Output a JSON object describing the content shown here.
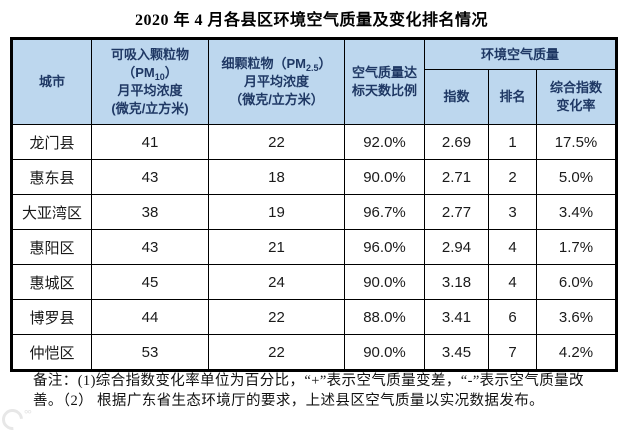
{
  "title": "2020 年 4 月各县区环境空气质量及变化排名情况",
  "colors": {
    "header_bg": "#BDD7EE",
    "header_text": "#1F3864",
    "border": "#000000"
  },
  "table": {
    "headers": {
      "city": "城市",
      "pm10": {
        "line1": "可吸入颗粒物",
        "line2_pre": "（PM",
        "line2_sub": "10",
        "line2_post": "）",
        "line3": "月平均浓度",
        "line4": "(微克/立方米)"
      },
      "pm25": {
        "line1_pre": "细颗粒物（PM",
        "line1_sub": "2.5",
        "line1_post": "）",
        "line2": "月平均浓度",
        "line3": "（微克/立方米）"
      },
      "standard_days": {
        "line1": "空气质量达",
        "line2": "标天数比例"
      },
      "ambient_group": "环境空气质量",
      "index": "指数",
      "rank": "排名",
      "change_rate": {
        "line1": "综合指数",
        "line2": "变化率"
      }
    },
    "rows": [
      {
        "city": "龙门县",
        "pm10": "41",
        "pm25": "22",
        "standard": "92.0%",
        "index": "2.69",
        "rank": "1",
        "change": "17.5%"
      },
      {
        "city": "惠东县",
        "pm10": "43",
        "pm25": "18",
        "standard": "90.0%",
        "index": "2.71",
        "rank": "2",
        "change": "5.0%"
      },
      {
        "city": "大亚湾区",
        "pm10": "38",
        "pm25": "19",
        "standard": "96.7%",
        "index": "2.77",
        "rank": "3",
        "change": "3.4%"
      },
      {
        "city": "惠阳区",
        "pm10": "43",
        "pm25": "21",
        "standard": "96.0%",
        "index": "2.94",
        "rank": "4",
        "change": "1.7%"
      },
      {
        "city": "惠城区",
        "pm10": "45",
        "pm25": "24",
        "standard": "90.0%",
        "index": "3.18",
        "rank": "4",
        "change": "6.0%"
      },
      {
        "city": "博罗县",
        "pm10": "44",
        "pm25": "22",
        "standard": "88.0%",
        "index": "3.41",
        "rank": "6",
        "change": "3.6%"
      },
      {
        "city": "仲恺区",
        "pm10": "53",
        "pm25": "22",
        "standard": "90.0%",
        "index": "3.45",
        "rank": "7",
        "change": "4.2%"
      }
    ]
  },
  "note": "备注：(1)综合指数变化率单位为百分比，“+”表示空气质量变差，“-”表示空气质量改善。（2） 根据广东省生态环境厅的要求，上述县区空气质量以实况数据发布。",
  "watermark": {
    "icon": "crescent-face-logo"
  }
}
